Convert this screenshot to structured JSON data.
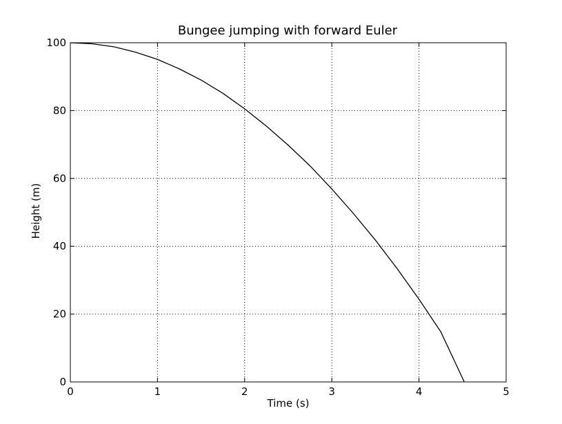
{
  "chart_data": {
    "type": "line",
    "title": "Bungee jumping with forward Euler",
    "xlabel": "Time (s)",
    "ylabel": "Height (m)",
    "xlim": [
      0,
      5
    ],
    "ylim": [
      0,
      100
    ],
    "xticks": [
      "0",
      "1",
      "2",
      "3",
      "4",
      "5"
    ],
    "yticks": [
      "0",
      "20",
      "40",
      "60",
      "80",
      "100"
    ],
    "grid": true,
    "line_color": "#000000",
    "series": [
      {
        "x": [
          0,
          0.25,
          0.5,
          0.75,
          1.0,
          1.25,
          1.5,
          1.75,
          2.0,
          2.25,
          2.5,
          2.75,
          3.0,
          3.25,
          3.5,
          3.75,
          4.0,
          4.25,
          4.52
        ],
        "values": [
          100,
          99.7,
          98.8,
          97.2,
          95.1,
          92.3,
          89.0,
          85.1,
          80.5,
          75.4,
          69.8,
          63.7,
          56.9,
          49.6,
          41.8,
          33.4,
          24.4,
          14.8,
          0
        ]
      }
    ]
  }
}
